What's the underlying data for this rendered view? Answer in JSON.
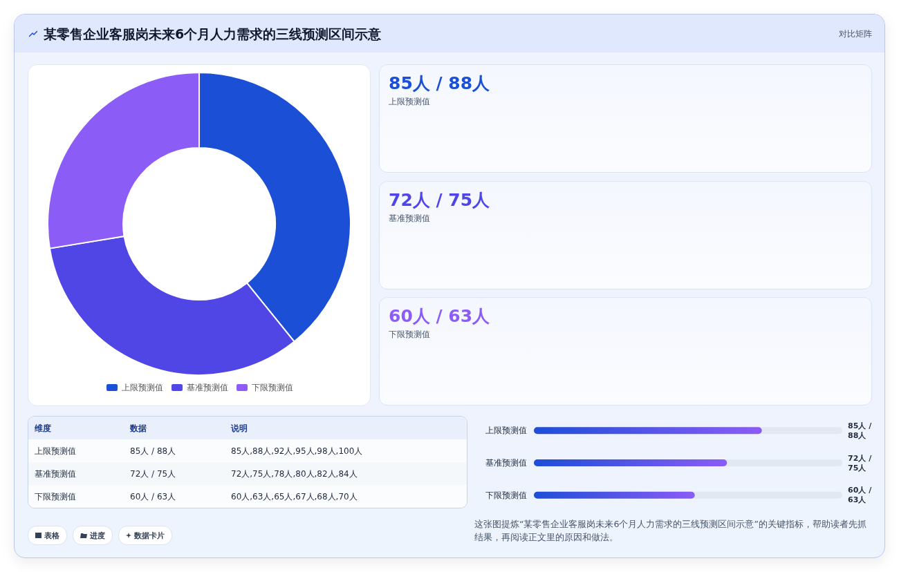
{
  "chart_data": [
    {
      "type": "donut",
      "title": "某零售企业客服岗未来6个月人力需求的三线预测区间示意",
      "annotations": [
        "对比矩阵"
      ],
      "categories": [
        "上限预测值",
        "基准预测值",
        "下限预测值"
      ],
      "values": [
        39.2,
        33.2,
        27.6
      ],
      "colors": [
        "#1a4fd6",
        "#4f46e5",
        "#8b5cf6"
      ],
      "legend": "bottom"
    },
    {
      "type": "other",
      "annotations": [
        "85人 / 88人",
        "上限预测值",
        "72人 / 75人",
        "基准预测值",
        "60人 / 63人",
        "下限预测值"
      ]
    },
    {
      "type": "other",
      "annotations": [
        "维度",
        "数据",
        "说明",
        "上限预测值",
        "85人 / 88人",
        "85人,88人,92人,95人,98人,100人",
        "基准预测值",
        "72人 / 75人",
        "72人,75人,78人,80人,82人,84人",
        "下限预测值",
        "60人 / 63人",
        "60人,63人,65人,67人,68人,70人"
      ]
    },
    {
      "type": "bar",
      "orientation": "horizontal",
      "categories": [
        "上限预测值",
        "基准预测值",
        "下限预测值"
      ],
      "values": [
        85,
        72,
        60
      ],
      "value_labels": [
        "85人 / 88人",
        "72人 / 75人",
        "60人 / 63人"
      ],
      "xlim": [
        0,
        115
      ],
      "color": "#1d4ed8",
      "tick_labels": "y",
      "annotations": [
        "这张图提炼“某零售企业客服岗未来6个月人力需求的三线预测区间示意”的关键指标，帮助读者先抓结果，再阅读正文里的原因和做法。"
      ]
    },
    {
      "type": "other",
      "annotations": [
        "表格",
        "进度",
        "数据卡片"
      ]
    }
  ]
}
